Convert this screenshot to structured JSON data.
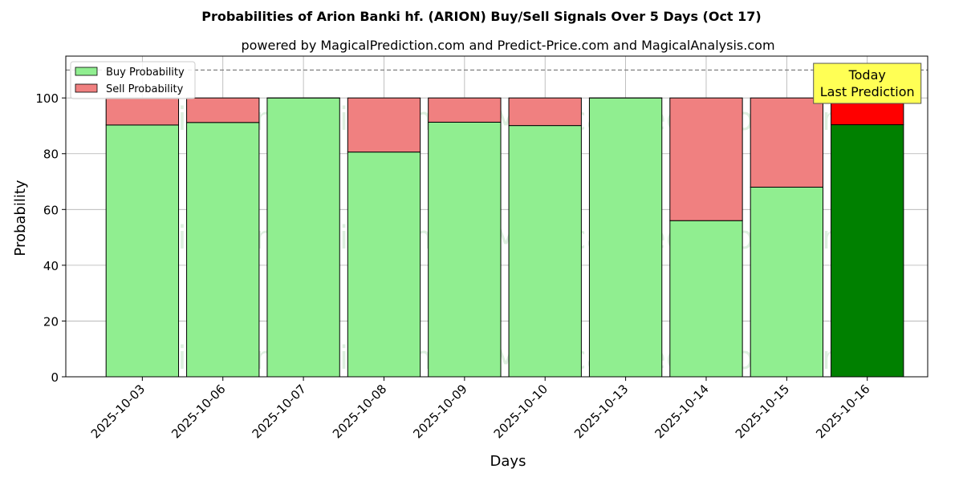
{
  "chart_data": {
    "type": "bar",
    "stacked": true,
    "title": "Probabilities of Arion Banki hf. (ARION) Buy/Sell Signals Over 5 Days (Oct 17)",
    "subtitle": "powered by MagicalPrediction.com and Predict-Price.com and MagicalAnalysis.com",
    "xlabel": "Days",
    "ylabel": "Probability",
    "ylim": [
      0,
      115
    ],
    "yticks": [
      0,
      20,
      40,
      60,
      80,
      100
    ],
    "grid": true,
    "legend_position": "top-left",
    "reference_line": 110,
    "categories": [
      "2025-10-03",
      "2025-10-06",
      "2025-10-07",
      "2025-10-08",
      "2025-10-09",
      "2025-10-10",
      "2025-10-13",
      "2025-10-14",
      "2025-10-15",
      "2025-10-16"
    ],
    "series": [
      {
        "name": "Buy Probability",
        "color": "#90ee90",
        "highlight_color": "#008000",
        "values": [
          90.3,
          91.2,
          100,
          80.6,
          91.3,
          90.1,
          100,
          56.0,
          68.0,
          90.4
        ]
      },
      {
        "name": "Sell Probability",
        "color": "#f08080",
        "highlight_color": "#ff0000",
        "values": [
          9.7,
          8.8,
          0,
          19.4,
          8.7,
          9.9,
          0,
          44.0,
          32.0,
          9.6
        ]
      }
    ],
    "annotation": {
      "line1": "Today",
      "line2": "Last Prediction",
      "background": "#ffff55",
      "category_index": 9
    },
    "watermarks": [
      "MagicalAnalysis.com",
      "MagicalPrediction.com"
    ]
  }
}
